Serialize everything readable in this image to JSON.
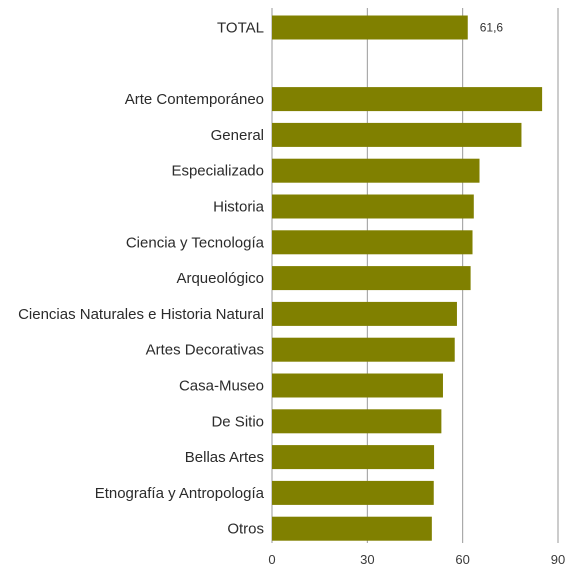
{
  "chart_data": {
    "type": "bar",
    "orientation": "horizontal",
    "categories": [
      "TOTAL",
      "",
      "Arte Contemporáneo",
      "General",
      "Especializado",
      "Historia",
      "Ciencia y Tecnología",
      "Arqueológico",
      "Ciencias Naturales e Historia Natural",
      "Artes Decorativas",
      "Casa-Museo",
      "De Sitio",
      "Bellas Artes",
      "Etnografía y Antropología",
      "Otros"
    ],
    "values": [
      61.6,
      null,
      85,
      78.5,
      65.3,
      63.5,
      63.1,
      62.5,
      58.2,
      57.5,
      53.8,
      53.3,
      51,
      50.9,
      50.3
    ],
    "data_labels": [
      "61,6",
      "",
      "",
      "",
      "",
      "",
      "",
      "",
      "",
      "",
      "",
      "",
      "",
      "",
      ""
    ],
    "xlim": [
      0,
      90
    ],
    "x_ticks": [
      0,
      30,
      60,
      90
    ],
    "x_tick_labels": [
      "0",
      "30",
      "60",
      "90"
    ],
    "grid": true,
    "bar_color": "#808000",
    "grid_color": "#9a9a9a"
  }
}
